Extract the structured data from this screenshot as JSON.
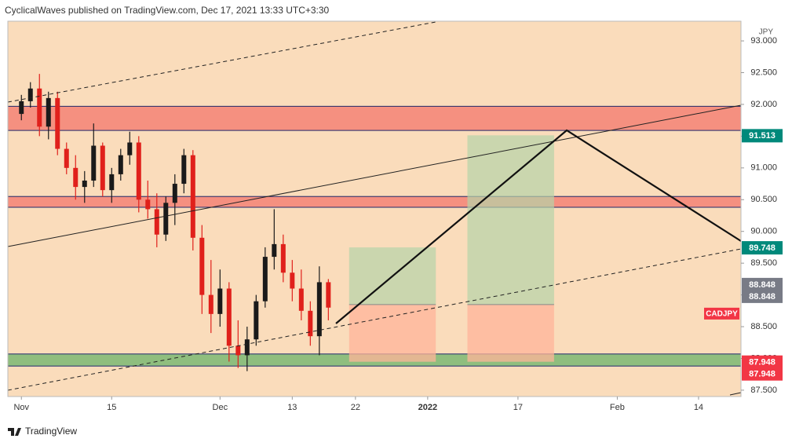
{
  "chart_data": {
    "type": "candlestick",
    "header": "CyclicalWaves published on TradingView.com, Dec 17, 2021 13:33 UTC+3:30",
    "brand": "TradingView",
    "currency": "JPY",
    "symbol": "CADJPY",
    "up_color": "#1a1a1a",
    "down_color": "#e0201b",
    "x": [
      0,
      1,
      2,
      3,
      4,
      5,
      6,
      7,
      8,
      9,
      10,
      11,
      12,
      13,
      14,
      15,
      16,
      17,
      18,
      19,
      20,
      21,
      22,
      23,
      24,
      25,
      26,
      27,
      28,
      29,
      30,
      31,
      32,
      33,
      34
    ],
    "open": [
      91.85,
      92.05,
      92.25,
      91.65,
      92.1,
      91.3,
      91.0,
      90.7,
      90.8,
      91.35,
      90.65,
      90.9,
      91.2,
      91.4,
      90.5,
      90.35,
      89.95,
      90.45,
      90.75,
      91.2,
      89.9,
      89.0,
      88.7,
      89.1,
      88.2,
      88.05,
      88.3,
      88.9,
      89.6,
      89.8,
      89.35,
      89.1,
      88.75,
      88.35,
      89.2
    ],
    "high": [
      92.15,
      92.35,
      92.48,
      92.2,
      92.2,
      91.4,
      91.2,
      90.95,
      91.7,
      91.4,
      91.0,
      91.3,
      91.57,
      91.5,
      90.8,
      90.6,
      90.55,
      90.9,
      91.3,
      91.28,
      90.1,
      89.55,
      89.4,
      89.2,
      88.6,
      88.5,
      89.0,
      89.75,
      90.35,
      89.95,
      89.55,
      89.4,
      88.9,
      89.45,
      89.25
    ],
    "low": [
      91.75,
      91.95,
      91.5,
      91.45,
      91.2,
      90.9,
      90.5,
      90.45,
      90.7,
      90.55,
      90.45,
      90.8,
      91.05,
      90.3,
      90.2,
      89.75,
      89.85,
      90.1,
      90.6,
      89.7,
      88.7,
      88.4,
      88.5,
      87.95,
      87.85,
      87.8,
      88.2,
      88.8,
      89.4,
      89.2,
      88.9,
      88.6,
      88.2,
      88.05,
      88.6
    ],
    "close": [
      92.05,
      92.25,
      91.65,
      92.1,
      91.3,
      91.0,
      90.7,
      90.8,
      91.35,
      90.65,
      90.9,
      91.2,
      91.4,
      90.5,
      90.35,
      89.95,
      90.45,
      90.75,
      91.2,
      89.9,
      89.0,
      88.7,
      89.1,
      88.2,
      88.05,
      88.3,
      88.9,
      89.6,
      89.8,
      89.35,
      89.1,
      88.75,
      88.35,
      89.2,
      88.8
    ],
    "xlim": [
      -1.5,
      79.7
    ],
    "xticks": [
      {
        "value": 0,
        "label": "Nov"
      },
      {
        "value": 10,
        "label": "15"
      },
      {
        "value": 22,
        "label": "Dec"
      },
      {
        "value": 30,
        "label": "13"
      },
      {
        "value": 37,
        "label": "22"
      },
      {
        "value": 45,
        "label": "2022"
      },
      {
        "value": 55,
        "label": "17"
      },
      {
        "value": 66,
        "label": "Feb"
      },
      {
        "value": 75,
        "label": "14"
      }
    ],
    "ylim": [
      87.4,
      93.31
    ],
    "yticks": [
      {
        "value": 87.5,
        "label": "87.500"
      },
      {
        "value": 88.0,
        "label": "88.000"
      },
      {
        "value": 88.5,
        "label": "88.500"
      },
      {
        "value": 89.0,
        "label": "89.000"
      },
      {
        "value": 89.5,
        "label": "89.500"
      },
      {
        "value": 90.0,
        "label": "90.000"
      },
      {
        "value": 90.5,
        "label": "90.500"
      },
      {
        "value": 91.0,
        "label": "91.000"
      },
      {
        "value": 91.5,
        "label": "91.500"
      },
      {
        "value": 92.0,
        "label": "92.000"
      },
      {
        "value": 92.5,
        "label": "92.500"
      },
      {
        "value": 93.0,
        "label": "93.000"
      }
    ],
    "price_labels": [
      {
        "value": 91.513,
        "labels": [
          "91.513"
        ],
        "color": "#00897b"
      },
      {
        "value": 89.748,
        "labels": [
          "89.748"
        ],
        "color": "#00897b"
      },
      {
        "value": 88.848,
        "labels": [
          "88.848",
          "88.848"
        ],
        "color": "#787b86"
      },
      {
        "value": 87.948,
        "labels": [
          "87.948",
          "87.948"
        ],
        "color": "#f23645"
      }
    ],
    "zones": [
      {
        "top": 91.97,
        "bottom": 91.59,
        "color": "#f59080"
      },
      {
        "top": 90.55,
        "bottom": 90.38,
        "color": "#f59080"
      },
      {
        "top": 88.07,
        "bottom": 87.88,
        "color": "#8fbe7e"
      }
    ],
    "positions": [
      {
        "x0": 36.3,
        "x1": 45.9,
        "entry": 88.848,
        "target": 89.748,
        "stop": 87.948
      },
      {
        "x0": 49.4,
        "x1": 59.0,
        "entry": 88.848,
        "target": 91.513,
        "stop": 87.948
      }
    ]
  }
}
